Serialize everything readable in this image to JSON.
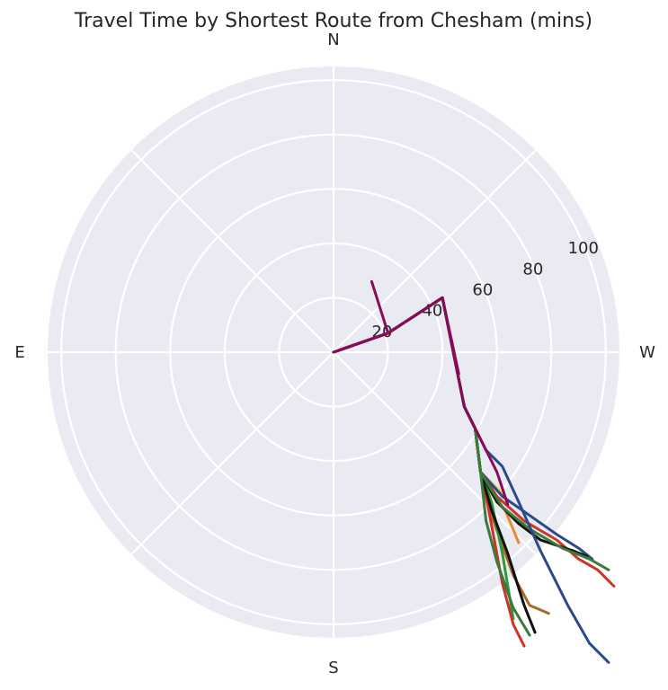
{
  "chart_data": {
    "type": "line",
    "projection": "polar",
    "title": "Travel Time by Shortest Route from Chesham (mins)",
    "theta_labels": {
      "north": "N",
      "east": "E",
      "south": "S",
      "west": "W"
    },
    "theta_direction": "N at top, E on left, S at bottom, W on right",
    "r_ticks": [
      20,
      40,
      60,
      80,
      100
    ],
    "rlim": [
      0,
      105
    ],
    "grid": true,
    "background": "#eaeaf2",
    "grid_color": "#ffffff",
    "series": [
      {
        "color": "#b8b8c0",
        "points": [
          [
            0,
            0
          ],
          [
            20,
            7
          ],
          [
            40,
            20
          ],
          [
            48,
            -20
          ],
          [
            52,
            -28
          ]
        ]
      },
      {
        "color": "#f0c030",
        "points": [
          [
            0,
            0
          ],
          [
            20,
            7
          ],
          [
            40,
            20
          ],
          [
            48,
            -20
          ],
          [
            52,
            -28
          ],
          [
            54,
            -44
          ],
          [
            58,
            -48
          ],
          [
            62,
            -52
          ]
        ]
      },
      {
        "color": "#e68a30",
        "points": [
          [
            0,
            0
          ],
          [
            20,
            7
          ],
          [
            40,
            20
          ],
          [
            48,
            -20
          ],
          [
            52,
            -28
          ],
          [
            54,
            -44
          ],
          [
            58,
            -52
          ],
          [
            63,
            -58
          ],
          [
            68,
            -70
          ]
        ]
      },
      {
        "color": "#a86a2a",
        "points": [
          [
            0,
            0
          ],
          [
            20,
            7
          ],
          [
            40,
            20
          ],
          [
            48,
            -20
          ],
          [
            52,
            -28
          ],
          [
            54,
            -44
          ],
          [
            58,
            -60
          ],
          [
            66,
            -82
          ],
          [
            72,
            -93
          ],
          [
            79,
            -96
          ]
        ]
      },
      {
        "color": "#2a9a3a",
        "points": [
          [
            0,
            0
          ],
          [
            20,
            7
          ],
          [
            40,
            20
          ],
          [
            48,
            -20
          ],
          [
            52,
            -28
          ],
          [
            54,
            -44
          ],
          [
            58,
            -55
          ],
          [
            62,
            -74
          ],
          [
            66,
            -98
          ]
        ]
      },
      {
        "color": "#d13328",
        "points": [
          [
            0,
            0
          ],
          [
            20,
            7
          ],
          [
            40,
            20
          ],
          [
            48,
            -20
          ],
          [
            52,
            -28
          ],
          [
            54,
            -44
          ],
          [
            60,
            -53
          ],
          [
            70,
            -62
          ],
          [
            82,
            -69
          ],
          [
            90,
            -76
          ],
          [
            97,
            -80
          ],
          [
            103,
            -86
          ]
        ]
      },
      {
        "color": "#d13328",
        "points": [
          [
            0,
            0
          ],
          [
            20,
            7
          ],
          [
            40,
            20
          ],
          [
            48,
            -20
          ],
          [
            52,
            -28
          ],
          [
            54,
            -44
          ],
          [
            57,
            -58
          ],
          [
            62,
            -85
          ],
          [
            66,
            -100
          ],
          [
            70,
            -108
          ]
        ]
      },
      {
        "color": "#2a4a8a",
        "points": [
          [
            0,
            0
          ],
          [
            20,
            7
          ],
          [
            40,
            20
          ],
          [
            48,
            -20
          ],
          [
            52,
            -28
          ],
          [
            54,
            -44
          ],
          [
            62,
            -53
          ],
          [
            72,
            -60
          ],
          [
            82,
            -67
          ],
          [
            90,
            -72
          ],
          [
            95,
            -76
          ]
        ]
      },
      {
        "color": "#111111",
        "points": [
          [
            0,
            0
          ],
          [
            20,
            7
          ],
          [
            40,
            20
          ],
          [
            48,
            -20
          ],
          [
            52,
            -28
          ],
          [
            54,
            -44
          ],
          [
            60,
            -55
          ],
          [
            68,
            -63
          ],
          [
            76,
            -69
          ],
          [
            88,
            -73
          ],
          [
            93,
            -75
          ]
        ]
      },
      {
        "color": "#111111",
        "points": [
          [
            0,
            0
          ],
          [
            20,
            7
          ],
          [
            40,
            20
          ],
          [
            48,
            -20
          ],
          [
            52,
            -28
          ],
          [
            54,
            -44
          ],
          [
            58,
            -58
          ],
          [
            64,
            -74
          ],
          [
            70,
            -93
          ],
          [
            74,
            -103
          ]
        ]
      },
      {
        "color": "#3a7a3a",
        "points": [
          [
            0,
            0
          ],
          [
            20,
            7
          ],
          [
            40,
            20
          ],
          [
            48,
            -20
          ],
          [
            52,
            -28
          ],
          [
            54,
            -44
          ],
          [
            62,
            -57
          ],
          [
            72,
            -65
          ],
          [
            84,
            -72
          ],
          [
            94,
            -76
          ],
          [
            101,
            -80
          ]
        ]
      },
      {
        "color": "#3a7a3a",
        "points": [
          [
            0,
            0
          ],
          [
            20,
            7
          ],
          [
            40,
            20
          ],
          [
            48,
            -20
          ],
          [
            52,
            -28
          ],
          [
            54,
            -44
          ],
          [
            56,
            -62
          ],
          [
            60,
            -77
          ],
          [
            66,
            -94
          ],
          [
            72,
            -104
          ]
        ]
      },
      {
        "color": "#2a4a8a",
        "points": [
          [
            0,
            0
          ],
          [
            20,
            7
          ],
          [
            40,
            20
          ],
          [
            48,
            -20
          ],
          [
            52,
            -28
          ],
          [
            56,
            -36
          ],
          [
            62,
            -42
          ],
          [
            68,
            -55
          ],
          [
            76,
            -73
          ],
          [
            86,
            -93
          ],
          [
            94,
            -107
          ],
          [
            101,
            -114
          ]
        ]
      },
      {
        "color": "#8a0a5a",
        "points": [
          [
            0,
            0
          ],
          [
            20,
            7
          ],
          [
            40,
            20
          ],
          [
            48,
            -20
          ],
          [
            52,
            -28
          ],
          [
            56,
            -36
          ],
          [
            60,
            -44
          ],
          [
            64,
            -56
          ]
        ]
      },
      {
        "color": "#8a0a5a",
        "points": [
          [
            0,
            0
          ],
          [
            20,
            7
          ],
          [
            40,
            20
          ],
          [
            46,
            -8
          ]
        ]
      },
      {
        "color": "#8a0a5a",
        "points": [
          [
            0,
            0
          ],
          [
            20,
            7
          ],
          [
            14,
            26
          ]
        ]
      }
    ]
  }
}
